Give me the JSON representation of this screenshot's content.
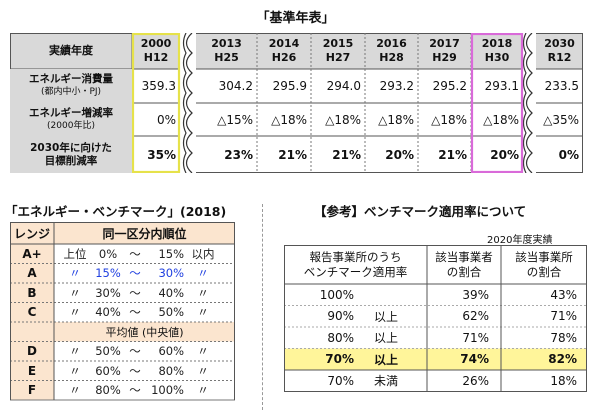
{
  "base_table": {
    "title": "「基準年表」",
    "header_label": "実績年度",
    "years": [
      {
        "y": "2000",
        "h": "H12"
      },
      {
        "y": "2013",
        "h": "H25"
      },
      {
        "y": "2014",
        "h": "H26"
      },
      {
        "y": "2015",
        "h": "H27"
      },
      {
        "y": "2016",
        "h": "H28"
      },
      {
        "y": "2017",
        "h": "H29"
      },
      {
        "y": "2018",
        "h": "H30"
      },
      {
        "y": "2030",
        "h": "R12"
      }
    ],
    "rows": [
      {
        "label": "エネルギー消費量",
        "sub": "(都内中小・PJ)",
        "values": [
          "359.3",
          "304.2",
          "295.9",
          "294.0",
          "293.2",
          "295.2",
          "293.1",
          "233.5"
        ]
      },
      {
        "label": "エネルギー増減率",
        "sub": "(2000年比)",
        "values": [
          "0%",
          "△15%",
          "△18%",
          "△18%",
          "△18%",
          "△18%",
          "△18%",
          "△35%"
        ]
      },
      {
        "label": "2030年に向けた",
        "sub": "目標削減率",
        "values": [
          "35%",
          "23%",
          "21%",
          "21%",
          "20%",
          "21%",
          "20%",
          "0%"
        ]
      }
    ],
    "highlight_colors": {
      "year2000": "#e6e24a",
      "year2018": "#d96ad9"
    }
  },
  "benchmark": {
    "title": "「エネルギー・ベンチマーク」(2018)",
    "col_range": "レンジ",
    "col_rank": "同一区分内順位",
    "rows": [
      {
        "grade": "A+",
        "c1": "上位",
        "c2": "0%",
        "c3": "～",
        "c4": "15%",
        "c5": "以内",
        "blue": false
      },
      {
        "grade": "A",
        "c1": "〃",
        "c2": "15%",
        "c3": "～",
        "c4": "30%",
        "c5": "〃",
        "blue": true
      },
      {
        "grade": "B",
        "c1": "〃",
        "c2": "30%",
        "c3": "～",
        "c4": "40%",
        "c5": "〃",
        "blue": false
      },
      {
        "grade": "C",
        "c1": "〃",
        "c2": "40%",
        "c3": "～",
        "c4": "50%",
        "c5": "〃",
        "blue": false
      },
      {
        "grade": "",
        "center": "平均値 (中央値)"
      },
      {
        "grade": "D",
        "c1": "〃",
        "c2": "50%",
        "c3": "～",
        "c4": "60%",
        "c5": "〃",
        "blue": false
      },
      {
        "grade": "E",
        "c1": "〃",
        "c2": "60%",
        "c3": "～",
        "c4": "80%",
        "c5": "〃",
        "blue": false
      },
      {
        "grade": "F",
        "c1": "〃",
        "c2": "80%",
        "c3": "～",
        "c4": "100%",
        "c5": "〃",
        "blue": false
      }
    ],
    "blue_color": "#1f3fe0"
  },
  "reference": {
    "title": "【参考】ベンチマーク適用率について",
    "note": "2020年度実績",
    "col1": [
      "報告事業所のうち",
      "ベンチマーク適用率"
    ],
    "col2": [
      "該当事業者",
      "の割合"
    ],
    "col3": [
      "該当事業所",
      "の割合"
    ],
    "rows": [
      {
        "rate": "100%",
        "cond": "",
        "a": "39%",
        "b": "43%",
        "hl": false
      },
      {
        "rate": "90%",
        "cond": "以上",
        "a": "62%",
        "b": "71%",
        "hl": false
      },
      {
        "rate": "80%",
        "cond": "以上",
        "a": "71%",
        "b": "78%",
        "hl": false
      },
      {
        "rate": "70%",
        "cond": "以上",
        "a": "74%",
        "b": "82%",
        "hl": true
      },
      {
        "rate": "70%",
        "cond": "未満",
        "a": "26%",
        "b": "18%",
        "hl": false
      }
    ],
    "highlight_color": "#fff59a"
  }
}
